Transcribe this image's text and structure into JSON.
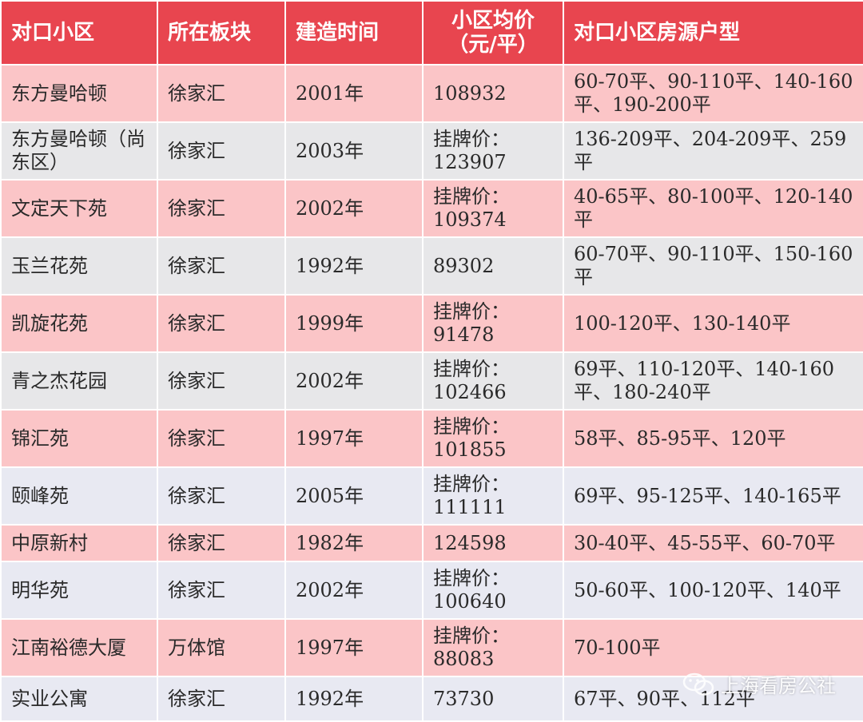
{
  "headers": [
    "对口小区",
    "所在板块",
    "建造时间",
    "小区均价\n（元/平）",
    "对口小区房源户型"
  ],
  "rows": [
    {
      "name": "东方曼哈顿",
      "area": "徐家汇",
      "year": "2001年",
      "price": "108932",
      "layouts": "60-70平、90-110平、140-160平、190-200平",
      "bg": "pink"
    },
    {
      "name": "东方曼哈顿（尚东区）",
      "area": "徐家汇",
      "year": "2003年",
      "price": "挂牌价：123907",
      "layouts": "136-209平、204-209平、259平",
      "bg": "gray"
    },
    {
      "name": "文定天下苑",
      "area": "徐家汇",
      "year": "2002年",
      "price": "挂牌价：109374",
      "layouts": "40-65平、80-100平、120-140平",
      "bg": "pink"
    },
    {
      "name": "玉兰花苑",
      "area": "徐家汇",
      "year": "1992年",
      "price": "89302",
      "layouts": "60-70平、90-110平、150-160平",
      "bg": "gray"
    },
    {
      "name": "凯旋花苑",
      "area": "徐家汇",
      "year": "1999年",
      "price": "挂牌价：91478",
      "layouts": "100-120平、130-140平",
      "bg": "pink"
    },
    {
      "name": "青之杰花园",
      "area": "徐家汇",
      "year": "2002年",
      "price": "挂牌价：102466",
      "layouts": "69平、110-120平、140-160平、180-240平",
      "bg": "gray"
    },
    {
      "name": "锦汇苑",
      "area": "徐家汇",
      "year": "1997年",
      "price": "挂牌价：101855",
      "layouts": "58平、85-95平、120平",
      "bg": "pink"
    },
    {
      "name": "颐峰苑",
      "area": "徐家汇",
      "year": "2005年",
      "price": "挂牌价：111111",
      "layouts": "69平、95-125平、140-165平",
      "bg": "lav"
    },
    {
      "name": "中原新村",
      "area": "徐家汇",
      "year": "1982年",
      "price": "124598",
      "layouts": "30-40平、45-55平、60-70平",
      "bg": "pink"
    },
    {
      "name": "明华苑",
      "area": "徐家汇",
      "year": "2002年",
      "price": "挂牌价：100640",
      "layouts": "50-60平、100-120平、140平",
      "bg": "lav"
    },
    {
      "name": "江南裕德大厦",
      "area": "万体馆",
      "year": "1997年",
      "price": "挂牌价：88083",
      "layouts": "70-100平",
      "bg": "pink"
    },
    {
      "name": "实业公寓",
      "area": "徐家汇",
      "year": "1992年",
      "price": "73730",
      "layouts": "67平、90平、112平",
      "bg": "lav"
    }
  ],
  "watermark": {
    "text": "上海看房公社",
    "icon": "wechat-icon"
  }
}
